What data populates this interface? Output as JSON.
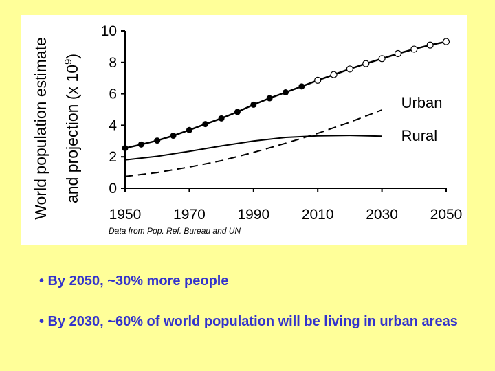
{
  "chart_data": {
    "type": "line",
    "ylabel_line1": "World population estimate",
    "ylabel_line2": "and projection (x 10",
    "ylabel_exponent": "9",
    "ylabel_close": ")",
    "xlim": [
      1950,
      2050
    ],
    "ylim": [
      0,
      10
    ],
    "x_ticks": [
      "1950",
      "1970",
      "1990",
      "2010",
      "2030",
      "2050"
    ],
    "y_ticks": [
      "0",
      "2",
      "4",
      "6",
      "8",
      "10"
    ],
    "grid": false,
    "source_note": "Data from Pop. Ref. Bureau and UN",
    "series": [
      {
        "name": "",
        "style": "solid-markers",
        "estimate_points": [
          [
            1950,
            2.55
          ],
          [
            1955,
            2.78
          ],
          [
            1960,
            3.03
          ],
          [
            1965,
            3.34
          ],
          [
            1970,
            3.7
          ],
          [
            1975,
            4.08
          ],
          [
            1980,
            4.44
          ],
          [
            1985,
            4.85
          ],
          [
            1990,
            5.31
          ],
          [
            1995,
            5.72
          ],
          [
            2000,
            6.09
          ],
          [
            2005,
            6.47
          ]
        ],
        "projection_points": [
          [
            2010,
            6.86
          ],
          [
            2015,
            7.22
          ],
          [
            2020,
            7.58
          ],
          [
            2025,
            7.92
          ],
          [
            2030,
            8.24
          ],
          [
            2035,
            8.56
          ],
          [
            2040,
            8.84
          ],
          [
            2045,
            9.1
          ],
          [
            2050,
            9.32
          ]
        ]
      },
      {
        "name": "Urban",
        "style": "dashed",
        "points": [
          [
            1950,
            0.75
          ],
          [
            1960,
            1.0
          ],
          [
            1970,
            1.35
          ],
          [
            1980,
            1.75
          ],
          [
            1990,
            2.28
          ],
          [
            2000,
            2.86
          ],
          [
            2010,
            3.49
          ],
          [
            2020,
            4.2
          ],
          [
            2030,
            4.98
          ]
        ]
      },
      {
        "name": "Rural",
        "style": "solid",
        "points": [
          [
            1950,
            1.8
          ],
          [
            1960,
            2.03
          ],
          [
            1970,
            2.35
          ],
          [
            1980,
            2.69
          ],
          [
            1990,
            3.0
          ],
          [
            2000,
            3.23
          ],
          [
            2010,
            3.33
          ],
          [
            2020,
            3.36
          ],
          [
            2030,
            3.31
          ]
        ]
      }
    ]
  },
  "bullets": {
    "first": "• By 2050, ~30% more people",
    "second": "• By 2030, ~60% of world population will be living in urban areas"
  },
  "colors": {
    "background": "#ffff99",
    "panel": "#ffffff",
    "bullet_text": "#3333cc"
  }
}
